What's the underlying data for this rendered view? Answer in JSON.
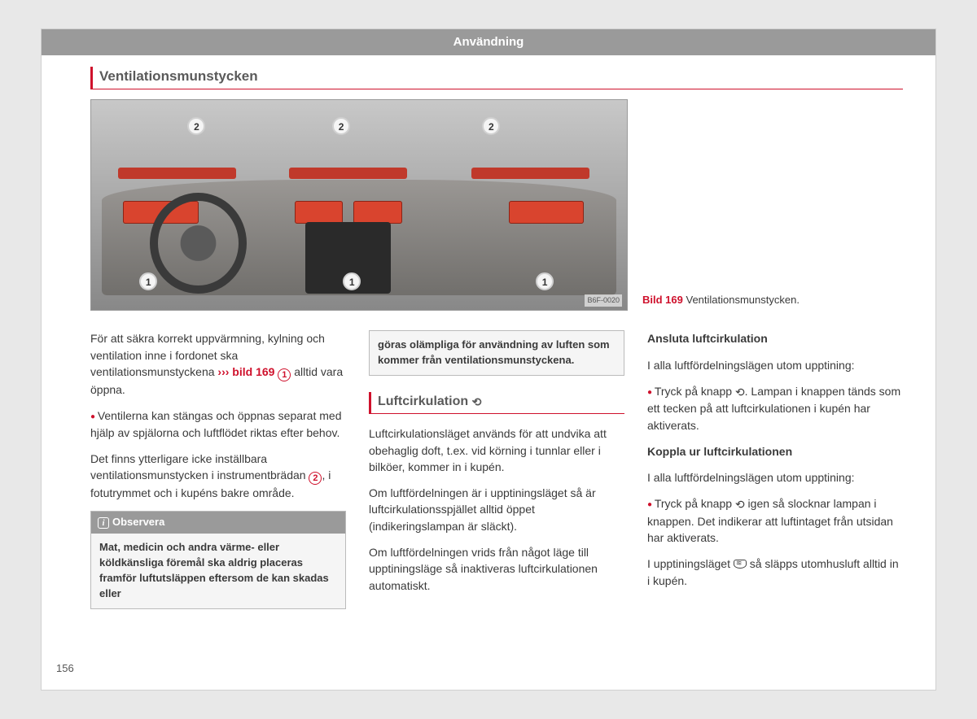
{
  "header": {
    "title": "Användning"
  },
  "section1": {
    "title": "Ventilationsmunstycken",
    "figure": {
      "code": "B6F-0020",
      "num_label": "Bild 169",
      "caption": "Ventilationsmunstycken.",
      "callouts": {
        "one": "1",
        "two": "2"
      }
    },
    "p1a": "För att säkra korrekt uppvärmning, kylning och ventilation inne i fordonet ska ventilationsmunstyckena ",
    "p1_ref": "››› bild 169 ",
    "p1b": " alltid vara öppna.",
    "p2": "Ventilerna kan stängas och öppnas separat med hjälp av spjälorna och luftflödet riktas efter behov.",
    "p3a": "Det finns ytterligare icke inställbara ventilationsmunstycken i instrumentbrädan ",
    "p3b": ", i fotutrymmet och i kupéns bakre område.",
    "note_title": "Observera",
    "note_body": "Mat, medicin och andra värme- eller köldkänsliga föremål ska aldrig placeras framför luftutsläppen eftersom de kan skadas eller",
    "note_cont": "göras olämpliga för användning av luften som kommer från ventilationsmunstyckena."
  },
  "section2": {
    "title": "Luftcirkulation ",
    "p1": "Luftcirkulationsläget används för att undvika att obehaglig doft, t.ex. vid körning i tunnlar eller i bilköer, kommer in i kupén.",
    "p2": "Om luftfördelningen är i upptiningsläget så är luftcirkulationsspjället alltid öppet (indikeringslampan är släckt).",
    "p3": "Om luftfördelningen vrids från något läge till upptiningsläge så inaktiveras luftcirkulationen automatiskt."
  },
  "section3": {
    "h1": "Ansluta luftcirkulation",
    "p1": "I alla luftfördelningslägen utom upptining:",
    "b1a": "Tryck på knapp ",
    "b1b": ". Lampan i knappen tänds som ett tecken på att luftcirkulationen i kupén har aktiverats.",
    "h2": "Koppla ur luftcirkulationen",
    "p2": "I alla luftfördelningslägen utom upptining:",
    "b2a": "Tryck på knapp ",
    "b2b": " igen så slocknar lampan i knappen. Det indikerar att luftintaget från utsidan har aktiverats.",
    "p3a": "I upptiningsläget ",
    "p3b": " så släpps utomhusluft alltid in i kupén."
  },
  "page_number": "156"
}
